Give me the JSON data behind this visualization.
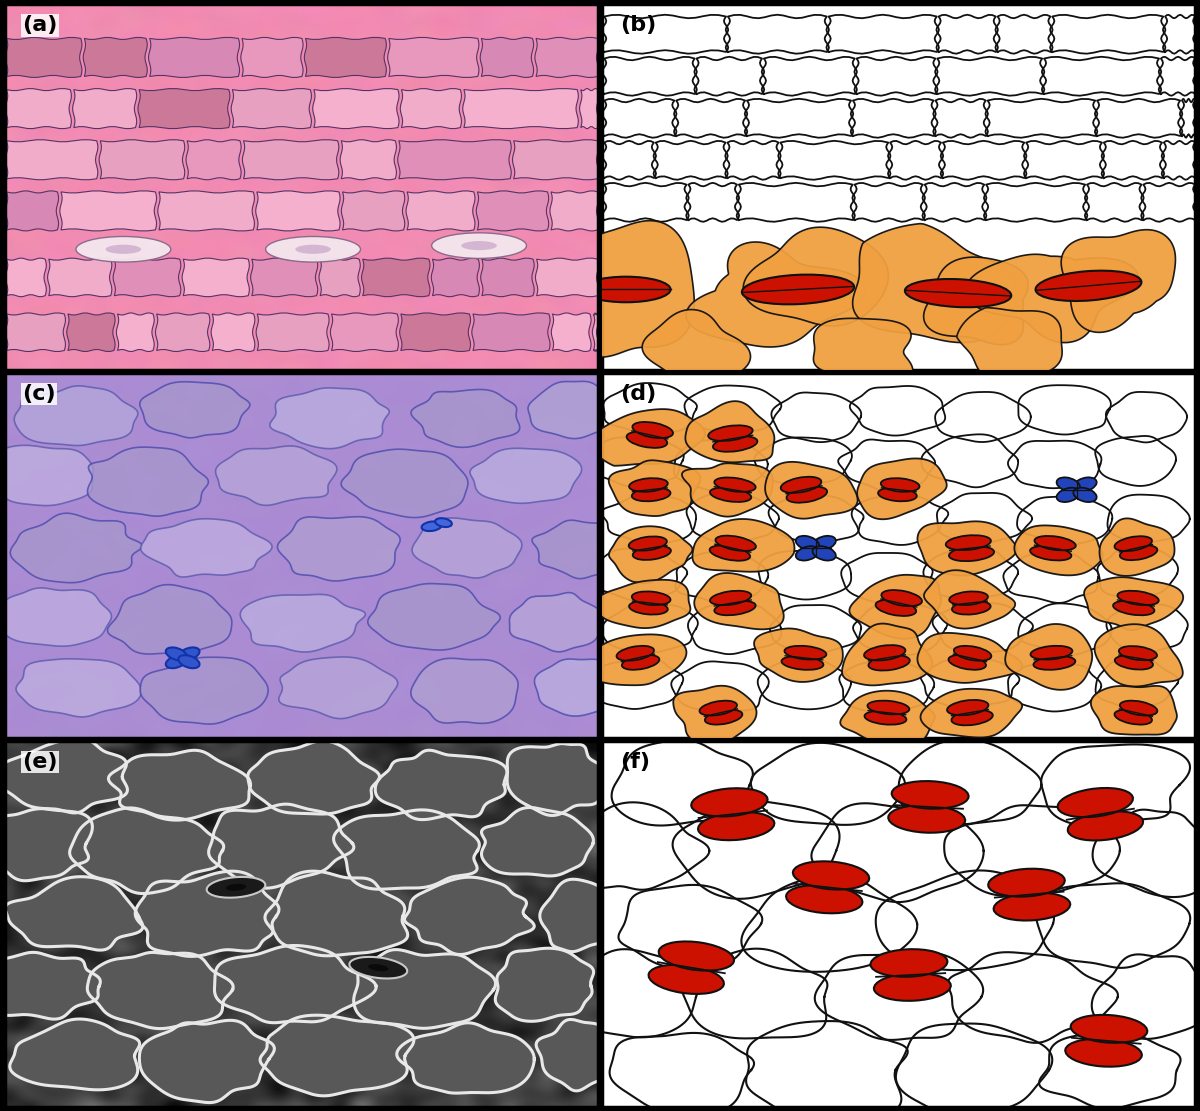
{
  "figure_size": [
    12.0,
    11.11
  ],
  "dpi": 100,
  "panel_labels": [
    "(a)",
    "(b)",
    "(c)",
    "(d)",
    "(e)",
    "(f)"
  ],
  "label_fontsize": 16,
  "label_fontweight": "bold",
  "orange_color": "#f0a040",
  "red_color": "#cc1100",
  "blue_color": "#2244bb",
  "cell_lw": 1.4,
  "stomata_lw": 1.6
}
